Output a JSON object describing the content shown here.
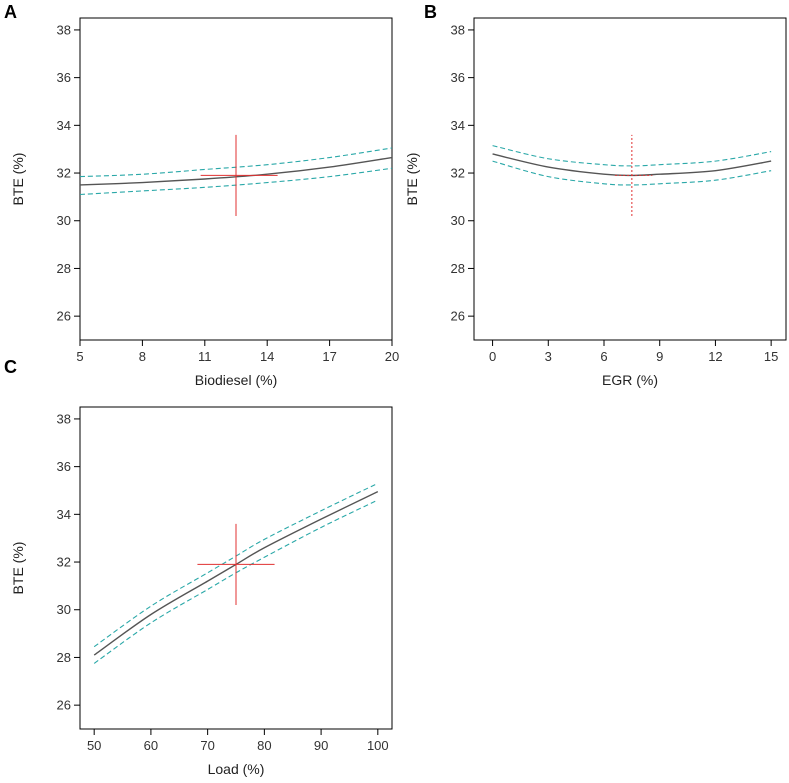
{
  "colors": {
    "fit_line": "#555555",
    "confidence_band": "#2aa8a8",
    "center_cross": "#e03030",
    "frame": "#000000"
  },
  "chart_data": [
    {
      "panel": "A",
      "type": "line",
      "xlabel": "Biodiesel (%)",
      "ylabel": "BTE (%)",
      "xlim": [
        5,
        20
      ],
      "ylim": [
        25,
        38.5
      ],
      "xticks": [
        5,
        8,
        11,
        14,
        17,
        20
      ],
      "yticks": [
        26,
        28,
        30,
        32,
        34,
        36,
        38
      ],
      "series": [
        {
          "name": "fit",
          "x": [
            5,
            8,
            11,
            14,
            17,
            20
          ],
          "y": [
            31.5,
            31.6,
            31.75,
            31.95,
            32.25,
            32.65
          ]
        },
        {
          "name": "upper",
          "x": [
            5,
            8,
            11,
            14,
            17,
            20
          ],
          "y": [
            31.85,
            31.95,
            32.15,
            32.35,
            32.65,
            33.05
          ]
        },
        {
          "name": "lower",
          "x": [
            5,
            8,
            11,
            14,
            17,
            20
          ],
          "y": [
            31.1,
            31.25,
            31.4,
            31.6,
            31.85,
            32.2
          ]
        }
      ],
      "center": {
        "x": 12.5,
        "y": 31.9,
        "x_range": [
          10.8,
          14.5
        ],
        "y_range": [
          30.2,
          33.6
        ],
        "style": "solid"
      }
    },
    {
      "panel": "B",
      "type": "line",
      "xlabel": "EGR (%)",
      "ylabel": "BTE (%)",
      "xlim": [
        -1,
        15.8
      ],
      "ylim": [
        25,
        38.5
      ],
      "xticks": [
        0,
        3,
        6,
        9,
        12,
        15
      ],
      "yticks": [
        26,
        28,
        30,
        32,
        34,
        36,
        38
      ],
      "series": [
        {
          "name": "fit",
          "x": [
            0,
            3,
            6,
            7.5,
            9,
            12,
            15
          ],
          "y": [
            32.8,
            32.25,
            31.95,
            31.9,
            31.95,
            32.1,
            32.5
          ]
        },
        {
          "name": "upper",
          "x": [
            0,
            3,
            6,
            7.5,
            9,
            12,
            15
          ],
          "y": [
            33.15,
            32.6,
            32.35,
            32.3,
            32.35,
            32.5,
            32.9
          ]
        },
        {
          "name": "lower",
          "x": [
            0,
            3,
            6,
            7.5,
            9,
            12,
            15
          ],
          "y": [
            32.5,
            31.85,
            31.55,
            31.5,
            31.55,
            31.7,
            32.1
          ]
        }
      ],
      "center": {
        "x": 7.5,
        "y": 31.9,
        "x_range": [
          6.6,
          8.6
        ],
        "y_range": [
          30.2,
          33.6
        ],
        "style": "dotted"
      }
    },
    {
      "panel": "C",
      "type": "line",
      "xlabel": "Load (%)",
      "ylabel": "BTE (%)",
      "xlim": [
        47.5,
        102.5
      ],
      "ylim": [
        25,
        38.5
      ],
      "xticks": [
        50,
        60,
        70,
        80,
        90,
        100
      ],
      "yticks": [
        26,
        28,
        30,
        32,
        34,
        36,
        38
      ],
      "series": [
        {
          "name": "fit",
          "x": [
            50,
            60,
            70,
            75,
            80,
            90,
            100
          ],
          "y": [
            28.1,
            29.8,
            31.2,
            31.9,
            32.6,
            33.8,
            34.95
          ]
        },
        {
          "name": "upper",
          "x": [
            50,
            60,
            70,
            75,
            80,
            90,
            100
          ],
          "y": [
            28.45,
            30.15,
            31.55,
            32.25,
            32.95,
            34.15,
            35.3
          ]
        },
        {
          "name": "lower",
          "x": [
            50,
            60,
            70,
            75,
            80,
            90,
            100
          ],
          "y": [
            27.75,
            29.45,
            30.85,
            31.55,
            32.2,
            33.45,
            34.6
          ]
        }
      ],
      "center": {
        "x": 75,
        "y": 31.9,
        "x_range": [
          68.2,
          81.8
        ],
        "y_range": [
          30.2,
          33.6
        ],
        "style": "solid"
      }
    }
  ]
}
